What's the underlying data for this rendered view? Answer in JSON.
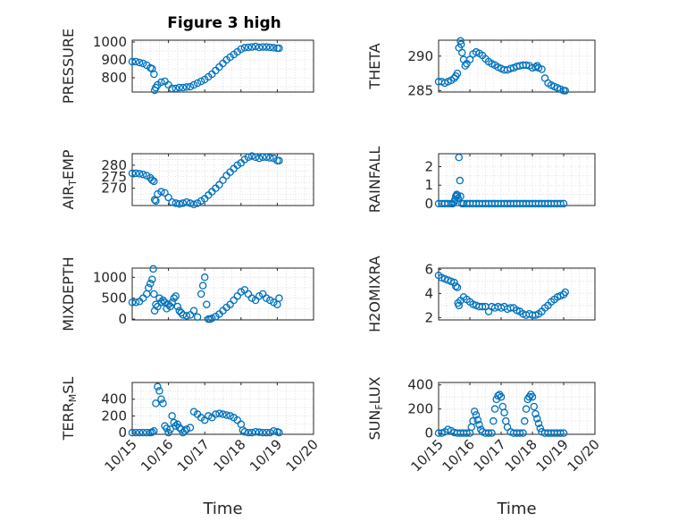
{
  "figure": {
    "title": "Figure 3 high"
  },
  "chart_data": [
    {
      "type": "scatter",
      "title": "Figure 3 high",
      "ylabel": "PRESSURE",
      "ylabel_parts": [
        [
          "PRESSURE",
          ""
        ]
      ],
      "ylim": [
        720,
        1010
      ],
      "yticks": [
        800,
        900,
        1000
      ],
      "xlim": [
        0,
        5
      ],
      "xticks": [
        0,
        1,
        2,
        3,
        4,
        5
      ],
      "xticklabels": [
        "10/15",
        "10/16",
        "10/17",
        "10/18",
        "10/19",
        "10/20"
      ],
      "show_xticklabels": false,
      "xlabel": "",
      "grid": true,
      "marker_color": "#0072BD",
      "x": [
        0,
        0.1,
        0.2,
        0.3,
        0.4,
        0.5,
        0.55,
        0.6,
        0.62,
        0.65,
        0.7,
        0.8,
        0.9,
        1.0,
        1.1,
        1.2,
        1.3,
        1.4,
        1.5,
        1.6,
        1.7,
        1.8,
        1.9,
        2.0,
        2.1,
        2.2,
        2.3,
        2.4,
        2.5,
        2.6,
        2.7,
        2.8,
        2.9,
        3.0,
        3.1,
        3.2,
        3.3,
        3.4,
        3.5,
        3.6,
        3.7,
        3.8,
        3.9,
        4.0,
        4.05
      ],
      "y": [
        890,
        890,
        885,
        880,
        870,
        855,
        850,
        820,
        730,
        745,
        760,
        775,
        780,
        760,
        740,
        740,
        745,
        745,
        748,
        750,
        760,
        770,
        780,
        790,
        805,
        820,
        840,
        860,
        880,
        900,
        915,
        930,
        945,
        960,
        968,
        970,
        972,
        975,
        970,
        972,
        972,
        970,
        968,
        965,
        965
      ]
    },
    {
      "type": "scatter",
      "ylabel": "THETA",
      "ylabel_parts": [
        [
          "THETA",
          ""
        ]
      ],
      "ylim": [
        284.8,
        292.3
      ],
      "yticks": [
        285,
        290
      ],
      "xlim": [
        0,
        5
      ],
      "xticks": [
        0,
        1,
        2,
        3,
        4,
        5
      ],
      "xticklabels": [
        "10/15",
        "10/16",
        "10/17",
        "10/18",
        "10/19",
        "10/20"
      ],
      "show_xticklabels": false,
      "xlabel": "",
      "grid": true,
      "marker_color": "#0072BD",
      "x": [
        0,
        0.1,
        0.2,
        0.3,
        0.4,
        0.5,
        0.55,
        0.6,
        0.65,
        0.7,
        0.72,
        0.75,
        0.8,
        0.85,
        0.9,
        1.0,
        1.1,
        1.2,
        1.3,
        1.4,
        1.5,
        1.6,
        1.7,
        1.8,
        1.9,
        2.0,
        2.1,
        2.2,
        2.3,
        2.4,
        2.5,
        2.6,
        2.7,
        2.8,
        2.9,
        3.0,
        3.1,
        3.15,
        3.2,
        3.3,
        3.4,
        3.5,
        3.6,
        3.7,
        3.8,
        3.9,
        4.0,
        4.05
      ],
      "y": [
        286.3,
        286.3,
        286.1,
        286.3,
        286.5,
        286.8,
        287.1,
        287.5,
        291.2,
        292.2,
        291.7,
        290.5,
        289.5,
        288.6,
        288.9,
        289.5,
        290.3,
        290.6,
        290.4,
        290.1,
        289.6,
        289.2,
        288.9,
        288.7,
        288.4,
        288.2,
        288.0,
        288.0,
        288.2,
        288.3,
        288.5,
        288.6,
        288.7,
        288.7,
        288.6,
        288.3,
        288.4,
        288.6,
        288.3,
        288.1,
        286.8,
        286.1,
        285.8,
        285.6,
        285.4,
        285.2,
        285.0,
        285.0
      ]
    },
    {
      "type": "scatter",
      "ylabel": "AIR_TEMP",
      "ylabel_parts": [
        [
          "AIR",
          ""
        ],
        [
          "T",
          "sub"
        ],
        [
          "EMP",
          ""
        ]
      ],
      "ylim": [
        262.5,
        285
      ],
      "yticks": [
        270,
        275,
        280
      ],
      "xlim": [
        0,
        5
      ],
      "xticks": [
        0,
        1,
        2,
        3,
        4,
        5
      ],
      "xticklabels": [
        "10/15",
        "10/16",
        "10/17",
        "10/18",
        "10/19",
        "10/20"
      ],
      "show_xticklabels": false,
      "xlabel": "",
      "grid": true,
      "marker_color": "#0072BD",
      "x": [
        0,
        0.1,
        0.2,
        0.3,
        0.4,
        0.5,
        0.55,
        0.6,
        0.62,
        0.65,
        0.7,
        0.8,
        0.9,
        1.0,
        1.1,
        1.2,
        1.3,
        1.4,
        1.5,
        1.6,
        1.7,
        1.8,
        1.9,
        2.0,
        2.1,
        2.2,
        2.3,
        2.4,
        2.5,
        2.6,
        2.7,
        2.8,
        2.9,
        3.0,
        3.1,
        3.2,
        3.3,
        3.4,
        3.5,
        3.6,
        3.7,
        3.8,
        3.9,
        4.0,
        4.05
      ],
      "y": [
        276.5,
        276.5,
        276.3,
        276.0,
        275.5,
        274.5,
        273.5,
        273.0,
        265.0,
        264.5,
        267.5,
        268.5,
        268.0,
        266.0,
        264.0,
        263.5,
        263.2,
        263.5,
        264.0,
        263.5,
        263.0,
        263.5,
        264.5,
        265.5,
        267.0,
        268.5,
        270.0,
        271.5,
        273.5,
        275.5,
        277.0,
        278.5,
        280.0,
        281.0,
        282.5,
        283.5,
        284.0,
        283.5,
        283.0,
        283.5,
        283.5,
        283.2,
        283.0,
        282.0,
        282.0
      ]
    },
    {
      "type": "scatter",
      "ylabel": "RAINFALL",
      "ylabel_parts": [
        [
          "RAINFALL",
          ""
        ]
      ],
      "ylim": [
        -0.1,
        2.7
      ],
      "yticks": [
        0,
        1,
        2
      ],
      "xlim": [
        0,
        5
      ],
      "xticks": [
        0,
        1,
        2,
        3,
        4,
        5
      ],
      "xticklabels": [
        "10/15",
        "10/16",
        "10/17",
        "10/18",
        "10/19",
        "10/20"
      ],
      "show_xticklabels": false,
      "xlabel": "",
      "grid": true,
      "marker_color": "#0072BD",
      "x": [
        0,
        0.1,
        0.2,
        0.3,
        0.4,
        0.45,
        0.5,
        0.52,
        0.55,
        0.58,
        0.6,
        0.62,
        0.65,
        0.68,
        0.7,
        0.75,
        0.8,
        0.9,
        1.0,
        1.1,
        1.2,
        1.3,
        1.4,
        1.5,
        1.6,
        1.7,
        1.8,
        1.9,
        2.0,
        2.1,
        2.2,
        2.3,
        2.4,
        2.5,
        2.6,
        2.7,
        2.8,
        2.9,
        3.0,
        3.1,
        3.2,
        3.3,
        3.4,
        3.5,
        3.6,
        3.7,
        3.8,
        3.9,
        4.0
      ],
      "y": [
        0,
        0,
        0,
        0,
        0,
        0,
        0.1,
        0.2,
        0.4,
        0.5,
        0.45,
        0.3,
        2.5,
        1.25,
        0.4,
        0,
        0,
        0,
        0,
        0,
        0,
        0,
        0,
        0,
        0,
        0,
        0,
        0,
        0,
        0,
        0,
        0,
        0,
        0,
        0,
        0,
        0,
        0,
        0,
        0,
        0,
        0,
        0,
        0,
        0,
        0,
        0,
        0,
        0
      ]
    },
    {
      "type": "scatter",
      "ylabel": "MIXDEPTH",
      "ylabel_parts": [
        [
          "MIXDEPTH",
          ""
        ]
      ],
      "ylim": [
        -20,
        1220
      ],
      "yticks": [
        0,
        500,
        1000
      ],
      "xlim": [
        0,
        5
      ],
      "xticks": [
        0,
        1,
        2,
        3,
        4,
        5
      ],
      "xticklabels": [
        "10/15",
        "10/16",
        "10/17",
        "10/18",
        "10/19",
        "10/20"
      ],
      "show_xticklabels": false,
      "xlabel": "",
      "grid": true,
      "marker_color": "#0072BD",
      "x": [
        0,
        0.1,
        0.2,
        0.3,
        0.4,
        0.45,
        0.5,
        0.55,
        0.58,
        0.6,
        0.62,
        0.65,
        0.7,
        0.75,
        0.8,
        0.85,
        0.9,
        0.95,
        1.0,
        1.05,
        1.1,
        1.15,
        1.2,
        1.25,
        1.3,
        1.35,
        1.4,
        1.5,
        1.6,
        1.7,
        1.8,
        1.9,
        1.95,
        2.0,
        2.05,
        2.1,
        2.15,
        2.2,
        2.3,
        2.4,
        2.5,
        2.6,
        2.7,
        2.8,
        2.9,
        3.0,
        3.1,
        3.2,
        3.3,
        3.4,
        3.5,
        3.6,
        3.7,
        3.8,
        3.9,
        4.0,
        4.05
      ],
      "y": [
        400,
        400,
        420,
        500,
        600,
        750,
        850,
        950,
        1200,
        600,
        200,
        350,
        300,
        500,
        400,
        450,
        400,
        250,
        350,
        300,
        400,
        500,
        550,
        300,
        200,
        150,
        100,
        80,
        100,
        200,
        50,
        600,
        800,
        1000,
        350,
        0,
        0,
        20,
        60,
        120,
        200,
        280,
        350,
        450,
        550,
        650,
        700,
        600,
        500,
        450,
        550,
        600,
        500,
        450,
        400,
        350,
        500
      ]
    },
    {
      "type": "scatter",
      "ylabel": "H2OMIXRA",
      "ylabel_parts": [
        [
          "H2OMIXRA",
          ""
        ]
      ],
      "ylim": [
        1.8,
        6.1
      ],
      "yticks": [
        2,
        4,
        6
      ],
      "xlim": [
        0,
        5
      ],
      "xticks": [
        0,
        1,
        2,
        3,
        4,
        5
      ],
      "xticklabels": [
        "10/15",
        "10/16",
        "10/17",
        "10/18",
        "10/19",
        "10/20"
      ],
      "show_xticklabels": false,
      "xlabel": "",
      "grid": true,
      "marker_color": "#0072BD",
      "x": [
        0,
        0.1,
        0.2,
        0.3,
        0.4,
        0.5,
        0.55,
        0.6,
        0.62,
        0.65,
        0.7,
        0.8,
        0.9,
        1.0,
        1.1,
        1.2,
        1.3,
        1.4,
        1.5,
        1.6,
        1.7,
        1.8,
        1.9,
        2.0,
        2.1,
        2.2,
        2.3,
        2.4,
        2.5,
        2.6,
        2.7,
        2.8,
        2.9,
        3.0,
        3.1,
        3.2,
        3.3,
        3.4,
        3.5,
        3.6,
        3.7,
        3.8,
        3.9,
        4.0,
        4.05
      ],
      "y": [
        5.5,
        5.3,
        5.2,
        5.1,
        5.0,
        4.9,
        4.6,
        4.5,
        3.2,
        3.0,
        3.4,
        3.7,
        3.5,
        3.3,
        3.1,
        3.0,
        2.9,
        2.9,
        2.9,
        2.5,
        2.9,
        2.8,
        2.9,
        2.8,
        2.9,
        2.7,
        2.8,
        2.8,
        2.6,
        2.5,
        2.3,
        2.2,
        2.3,
        2.2,
        2.2,
        2.3,
        2.5,
        2.8,
        3.0,
        3.3,
        3.5,
        3.7,
        3.8,
        3.9,
        4.1
      ]
    },
    {
      "type": "scatter",
      "ylabel": "TERR_MSL",
      "ylabel_parts": [
        [
          "TERR",
          ""
        ],
        [
          "M",
          "sub"
        ],
        [
          "SL",
          ""
        ]
      ],
      "ylim": [
        -20,
        600
      ],
      "yticks": [
        0,
        200,
        400
      ],
      "xlim": [
        0,
        5
      ],
      "xticks": [
        0,
        1,
        2,
        3,
        4,
        5
      ],
      "xticklabels": [
        "10/15",
        "10/16",
        "10/17",
        "10/18",
        "10/19",
        "10/20"
      ],
      "show_xticklabels": true,
      "xlabel": "Time",
      "grid": true,
      "marker_color": "#0072BD",
      "x": [
        0,
        0.1,
        0.2,
        0.3,
        0.4,
        0.5,
        0.55,
        0.6,
        0.65,
        0.7,
        0.75,
        0.8,
        0.85,
        0.9,
        0.95,
        1.0,
        1.05,
        1.1,
        1.15,
        1.2,
        1.25,
        1.3,
        1.35,
        1.4,
        1.45,
        1.5,
        1.6,
        1.7,
        1.8,
        1.9,
        2.0,
        2.1,
        2.2,
        2.3,
        2.4,
        2.5,
        2.6,
        2.7,
        2.8,
        2.9,
        3.0,
        3.05,
        3.1,
        3.2,
        3.3,
        3.4,
        3.5,
        3.6,
        3.7,
        3.8,
        3.9,
        4.0,
        4.05
      ],
      "y": [
        0,
        0,
        0,
        0,
        0,
        0,
        5,
        20,
        350,
        550,
        500,
        400,
        350,
        80,
        50,
        0,
        40,
        200,
        120,
        80,
        100,
        60,
        40,
        0,
        20,
        40,
        60,
        250,
        220,
        180,
        150,
        200,
        180,
        220,
        230,
        220,
        210,
        200,
        180,
        150,
        100,
        30,
        10,
        0,
        0,
        10,
        5,
        0,
        0,
        0,
        20,
        10,
        0
      ]
    },
    {
      "type": "scatter",
      "ylabel": "SUN_FLUX",
      "ylabel_parts": [
        [
          "SUN",
          ""
        ],
        [
          "F",
          "sub"
        ],
        [
          "LUX",
          ""
        ]
      ],
      "ylim": [
        -10,
        420
      ],
      "yticks": [
        0,
        200,
        400
      ],
      "xlim": [
        0,
        5
      ],
      "xticks": [
        0,
        1,
        2,
        3,
        4,
        5
      ],
      "xticklabels": [
        "10/15",
        "10/16",
        "10/17",
        "10/18",
        "10/19",
        "10/20"
      ],
      "show_xticklabels": true,
      "xlabel": "Time",
      "grid": true,
      "marker_color": "#0072BD",
      "x": [
        0,
        0.1,
        0.2,
        0.3,
        0.4,
        0.5,
        0.6,
        0.7,
        0.8,
        0.9,
        1.0,
        1.05,
        1.1,
        1.15,
        1.2,
        1.25,
        1.3,
        1.35,
        1.4,
        1.5,
        1.6,
        1.7,
        1.75,
        1.8,
        1.85,
        1.9,
        1.95,
        2.0,
        2.05,
        2.1,
        2.15,
        2.2,
        2.3,
        2.4,
        2.5,
        2.6,
        2.7,
        2.75,
        2.8,
        2.85,
        2.9,
        2.95,
        3.0,
        3.05,
        3.1,
        3.15,
        3.2,
        3.25,
        3.3,
        3.4,
        3.5,
        3.6,
        3.7,
        3.8,
        3.9,
        4.0
      ],
      "y": [
        0,
        0,
        10,
        30,
        20,
        5,
        0,
        0,
        0,
        0,
        0,
        50,
        100,
        180,
        150,
        110,
        70,
        30,
        10,
        0,
        0,
        0,
        100,
        200,
        280,
        310,
        320,
        300,
        220,
        170,
        100,
        50,
        10,
        0,
        0,
        0,
        0,
        100,
        200,
        280,
        300,
        320,
        300,
        220,
        160,
        120,
        80,
        40,
        10,
        0,
        0,
        0,
        0,
        0,
        0,
        0
      ]
    }
  ]
}
